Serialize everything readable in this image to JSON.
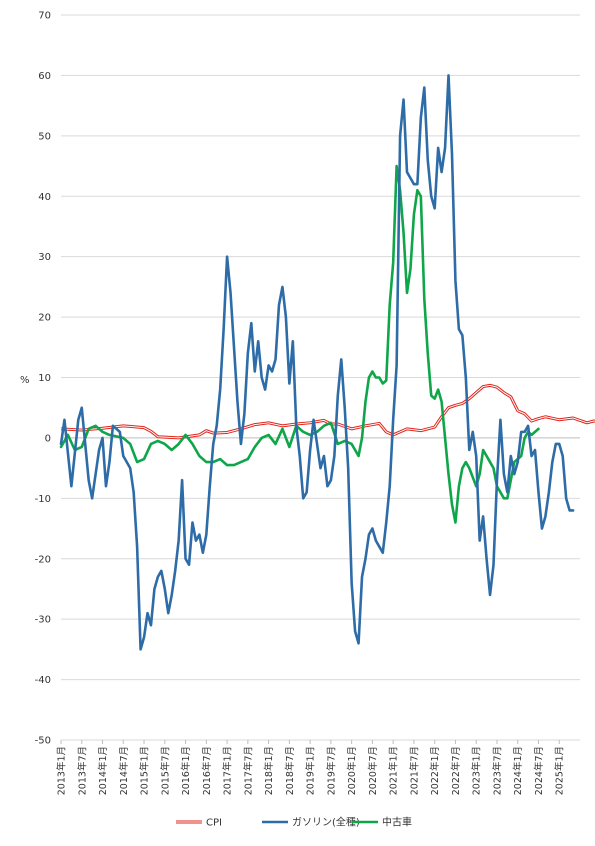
{
  "chart_data": {
    "type": "line",
    "title": "",
    "xlabel": "",
    "ylabel": "%",
    "ylim": [
      -50,
      70
    ],
    "yticks": [
      70,
      60,
      50,
      40,
      30,
      20,
      10,
      0,
      -10,
      -20,
      -30,
      -40,
      -50
    ],
    "grid": true,
    "legend_position": "bottom",
    "x_ticks": [
      "2013年1月",
      "2013年7月",
      "2014年1月",
      "2014年7月",
      "2015年1月",
      "2015年7月",
      "2016年1月",
      "2016年7月",
      "2017年1月",
      "2017年7月",
      "2018年1月",
      "2018年7月",
      "2019年1月",
      "2019年7月",
      "2020年1月",
      "2020年7月",
      "2021年1月",
      "2021年7月",
      "2022年1月",
      "2022年7月",
      "2023年1月",
      "2023年7月",
      "2024年1月",
      "2024年7月",
      "2025年1月"
    ],
    "x_start_index": 0,
    "series": [
      {
        "name": "CPI",
        "color": "#e0241b",
        "style": "double",
        "values": [
          [
            0,
            1.5
          ],
          [
            6,
            1.3
          ],
          [
            12,
            1.6
          ],
          [
            18,
            2.0
          ],
          [
            24,
            1.7
          ],
          [
            26,
            1.1
          ],
          [
            28,
            0.2
          ],
          [
            34,
            0.0
          ],
          [
            40,
            0.5
          ],
          [
            42,
            1.2
          ],
          [
            44,
            0.8
          ],
          [
            48,
            0.9
          ],
          [
            52,
            1.5
          ],
          [
            56,
            2.2
          ],
          [
            60,
            2.5
          ],
          [
            64,
            2.0
          ],
          [
            68,
            2.3
          ],
          [
            72,
            2.5
          ],
          [
            76,
            2.9
          ],
          [
            78,
            2.3
          ],
          [
            80,
            2.3
          ],
          [
            84,
            1.5
          ],
          [
            88,
            2.0
          ],
          [
            92,
            2.4
          ],
          [
            94,
            1.0
          ],
          [
            96,
            0.5
          ],
          [
            100,
            1.5
          ],
          [
            104,
            1.2
          ],
          [
            108,
            1.8
          ],
          [
            110,
            3.5
          ],
          [
            112,
            5.0
          ],
          [
            114,
            5.4
          ],
          [
            116,
            5.7
          ],
          [
            118,
            6.5
          ],
          [
            120,
            7.5
          ],
          [
            122,
            8.5
          ],
          [
            124,
            8.7
          ],
          [
            126,
            8.4
          ],
          [
            128,
            7.5
          ],
          [
            130,
            6.8
          ],
          [
            132,
            4.5
          ],
          [
            134,
            4.0
          ],
          [
            136,
            2.8
          ],
          [
            138,
            3.2
          ],
          [
            140,
            3.5
          ],
          [
            144,
            3.0
          ],
          [
            148,
            3.3
          ],
          [
            152,
            2.5
          ],
          [
            154,
            2.8
          ],
          [
            158,
            2.5
          ],
          [
            160,
            2.0
          ]
        ]
      },
      {
        "name": "ガソリン(全種)",
        "color": "#2e6ca8",
        "style": "solid",
        "values": [
          [
            0,
            -1
          ],
          [
            1,
            3
          ],
          [
            3,
            -8
          ],
          [
            5,
            3
          ],
          [
            6,
            5
          ],
          [
            8,
            -7
          ],
          [
            9,
            -10
          ],
          [
            11,
            -2
          ],
          [
            12,
            0
          ],
          [
            13,
            -8
          ],
          [
            14,
            -4
          ],
          [
            15,
            2
          ],
          [
            17,
            1
          ],
          [
            18,
            -3
          ],
          [
            20,
            -5
          ],
          [
            21,
            -9
          ],
          [
            22,
            -18
          ],
          [
            23,
            -35
          ],
          [
            24,
            -33
          ],
          [
            25,
            -29
          ],
          [
            26,
            -31
          ],
          [
            27,
            -25
          ],
          [
            28,
            -23
          ],
          [
            29,
            -22
          ],
          [
            30,
            -25
          ],
          [
            31,
            -29
          ],
          [
            32,
            -26
          ],
          [
            33,
            -22
          ],
          [
            34,
            -17
          ],
          [
            35,
            -7
          ],
          [
            36,
            -20
          ],
          [
            37,
            -21
          ],
          [
            38,
            -14
          ],
          [
            39,
            -17
          ],
          [
            40,
            -16
          ],
          [
            41,
            -19
          ],
          [
            42,
            -16
          ],
          [
            43,
            -8
          ],
          [
            44,
            -1
          ],
          [
            45,
            2
          ],
          [
            46,
            8
          ],
          [
            47,
            18
          ],
          [
            48,
            30
          ],
          [
            49,
            24
          ],
          [
            50,
            15
          ],
          [
            51,
            6
          ],
          [
            52,
            -1
          ],
          [
            53,
            4
          ],
          [
            54,
            14
          ],
          [
            55,
            19
          ],
          [
            56,
            11
          ],
          [
            57,
            16
          ],
          [
            58,
            10
          ],
          [
            59,
            8
          ],
          [
            60,
            12
          ],
          [
            61,
            11
          ],
          [
            62,
            13
          ],
          [
            63,
            22
          ],
          [
            64,
            25
          ],
          [
            65,
            20
          ],
          [
            66,
            9
          ],
          [
            67,
            16
          ],
          [
            68,
            2
          ],
          [
            69,
            -3
          ],
          [
            70,
            -10
          ],
          [
            71,
            -9
          ],
          [
            72,
            -2
          ],
          [
            73,
            3
          ],
          [
            74,
            -1
          ],
          [
            75,
            -5
          ],
          [
            76,
            -3
          ],
          [
            77,
            -8
          ],
          [
            78,
            -7
          ],
          [
            79,
            -3
          ],
          [
            80,
            7
          ],
          [
            81,
            13
          ],
          [
            82,
            5
          ],
          [
            83,
            -5
          ],
          [
            84,
            -24
          ],
          [
            85,
            -32
          ],
          [
            86,
            -34
          ],
          [
            87,
            -23
          ],
          [
            88,
            -20
          ],
          [
            89,
            -16
          ],
          [
            90,
            -15
          ],
          [
            91,
            -17
          ],
          [
            92,
            -18
          ],
          [
            93,
            -19
          ],
          [
            94,
            -14
          ],
          [
            95,
            -8
          ],
          [
            96,
            3
          ],
          [
            97,
            12
          ],
          [
            98,
            50
          ],
          [
            99,
            56
          ],
          [
            100,
            44
          ],
          [
            101,
            43
          ],
          [
            102,
            42
          ],
          [
            103,
            42
          ],
          [
            104,
            53
          ],
          [
            105,
            58
          ],
          [
            106,
            46
          ],
          [
            107,
            40
          ],
          [
            108,
            38
          ],
          [
            109,
            48
          ],
          [
            110,
            44
          ],
          [
            111,
            48
          ],
          [
            112,
            60
          ],
          [
            113,
            47
          ],
          [
            114,
            26
          ],
          [
            115,
            18
          ],
          [
            116,
            17
          ],
          [
            117,
            10
          ],
          [
            118,
            -2
          ],
          [
            119,
            1
          ],
          [
            120,
            -3
          ],
          [
            121,
            -17
          ],
          [
            122,
            -13
          ],
          [
            123,
            -20
          ],
          [
            124,
            -26
          ],
          [
            125,
            -21
          ],
          [
            126,
            -7
          ],
          [
            127,
            3
          ],
          [
            128,
            -6
          ],
          [
            129,
            -9
          ],
          [
            130,
            -3
          ],
          [
            131,
            -6
          ],
          [
            132,
            -4
          ],
          [
            133,
            1
          ],
          [
            134,
            1
          ],
          [
            135,
            2
          ],
          [
            136,
            -3
          ],
          [
            137,
            -2
          ],
          [
            138,
            -9
          ],
          [
            139,
            -15
          ],
          [
            140,
            -13
          ],
          [
            141,
            -9
          ],
          [
            142,
            -4
          ],
          [
            143,
            -1
          ],
          [
            144,
            -1
          ],
          [
            145,
            -3
          ],
          [
            146,
            -10
          ],
          [
            147,
            -12
          ],
          [
            148,
            -12
          ]
        ]
      },
      {
        "name": "中古車",
        "color": "#0fa64a",
        "style": "solid",
        "values": [
          [
            0,
            -1.5
          ],
          [
            2,
            0.5
          ],
          [
            4,
            -2
          ],
          [
            6,
            -1.5
          ],
          [
            8,
            1.5
          ],
          [
            10,
            2
          ],
          [
            12,
            1
          ],
          [
            14,
            0.5
          ],
          [
            18,
            0
          ],
          [
            20,
            -1
          ],
          [
            22,
            -4
          ],
          [
            24,
            -3.5
          ],
          [
            26,
            -1
          ],
          [
            28,
            -0.5
          ],
          [
            30,
            -1
          ],
          [
            32,
            -2
          ],
          [
            34,
            -1
          ],
          [
            36,
            0.5
          ],
          [
            38,
            -1
          ],
          [
            40,
            -3
          ],
          [
            42,
            -4
          ],
          [
            44,
            -4
          ],
          [
            46,
            -3.5
          ],
          [
            48,
            -4.5
          ],
          [
            50,
            -4.5
          ],
          [
            52,
            -4
          ],
          [
            54,
            -3.5
          ],
          [
            56,
            -1.5
          ],
          [
            58,
            0
          ],
          [
            60,
            0.5
          ],
          [
            62,
            -1
          ],
          [
            64,
            1.5
          ],
          [
            66,
            -1.5
          ],
          [
            68,
            2
          ],
          [
            70,
            1
          ],
          [
            72,
            0.5
          ],
          [
            74,
            1
          ],
          [
            76,
            2
          ],
          [
            78,
            2.5
          ],
          [
            80,
            -1
          ],
          [
            82,
            -0.5
          ],
          [
            84,
            -1
          ],
          [
            86,
            -3
          ],
          [
            87,
            0
          ],
          [
            88,
            6
          ],
          [
            89,
            10
          ],
          [
            90,
            11
          ],
          [
            91,
            10
          ],
          [
            92,
            10
          ],
          [
            93,
            9
          ],
          [
            94,
            9.5
          ],
          [
            95,
            22
          ],
          [
            96,
            29
          ],
          [
            97,
            45
          ],
          [
            98,
            41
          ],
          [
            99,
            34
          ],
          [
            100,
            24
          ],
          [
            101,
            28
          ],
          [
            102,
            37
          ],
          [
            103,
            41
          ],
          [
            104,
            40
          ],
          [
            105,
            23
          ],
          [
            106,
            14
          ],
          [
            107,
            7
          ],
          [
            108,
            6.5
          ],
          [
            109,
            8
          ],
          [
            110,
            6
          ],
          [
            111,
            0
          ],
          [
            112,
            -6
          ],
          [
            113,
            -11
          ],
          [
            114,
            -14
          ],
          [
            115,
            -8
          ],
          [
            116,
            -5
          ],
          [
            117,
            -4
          ],
          [
            118,
            -5
          ],
          [
            119,
            -6.5
          ],
          [
            120,
            -8
          ],
          [
            121,
            -6
          ],
          [
            122,
            -2
          ],
          [
            123,
            -3
          ],
          [
            124,
            -4
          ],
          [
            125,
            -5
          ],
          [
            126,
            -8
          ],
          [
            127,
            -9
          ],
          [
            128,
            -10
          ],
          [
            129,
            -10
          ],
          [
            130,
            -7
          ],
          [
            131,
            -4
          ],
          [
            132,
            -3.5
          ],
          [
            133,
            -3
          ],
          [
            134,
            0
          ],
          [
            135,
            1
          ],
          [
            136,
            0.5
          ],
          [
            137,
            1
          ],
          [
            138,
            1.5
          ]
        ]
      }
    ]
  }
}
